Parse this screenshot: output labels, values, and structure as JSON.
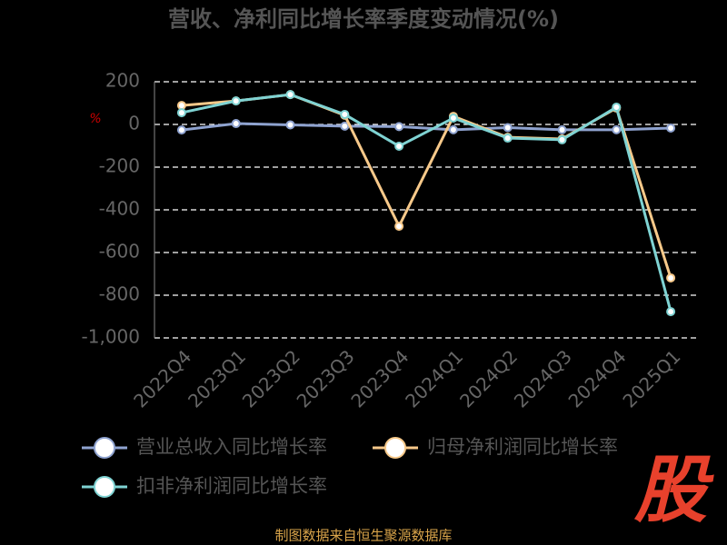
{
  "chart_data": {
    "type": "line",
    "title": "营收、净利同比增长率季度变动情况(%)",
    "y_label": "%",
    "categories": [
      "2022Q4",
      "2023Q1",
      "2023Q2",
      "2023Q3",
      "2023Q4",
      "2024Q1",
      "2024Q2",
      "2024Q3",
      "2024Q4",
      "2025Q1"
    ],
    "series": [
      {
        "name": "营业总收入同比增长率",
        "color": "#8fa3d0",
        "values": [
          -26,
          4,
          -2,
          -8,
          -10,
          -25,
          -15,
          -25,
          -25,
          -17
        ]
      },
      {
        "name": "归母净利润同比增长率",
        "color": "#f7c98a",
        "values": [
          89,
          110,
          140,
          43,
          -477,
          38,
          -60,
          -68,
          77,
          -719
        ]
      },
      {
        "name": "扣非净利润同比增长率",
        "color": "#7fd3d3",
        "values": [
          55,
          110,
          140,
          47,
          -102,
          30,
          -64,
          -72,
          81,
          -877
        ]
      }
    ],
    "ylim": [
      -1000,
      200
    ],
    "yticks": [
      200,
      0,
      -200,
      -400,
      -600,
      -800,
      {
        "value": -1000,
        "label": "-1,000"
      }
    ],
    "grid": true,
    "source": "制图数据来自恒生聚源数据库",
    "watermark": "股"
  }
}
